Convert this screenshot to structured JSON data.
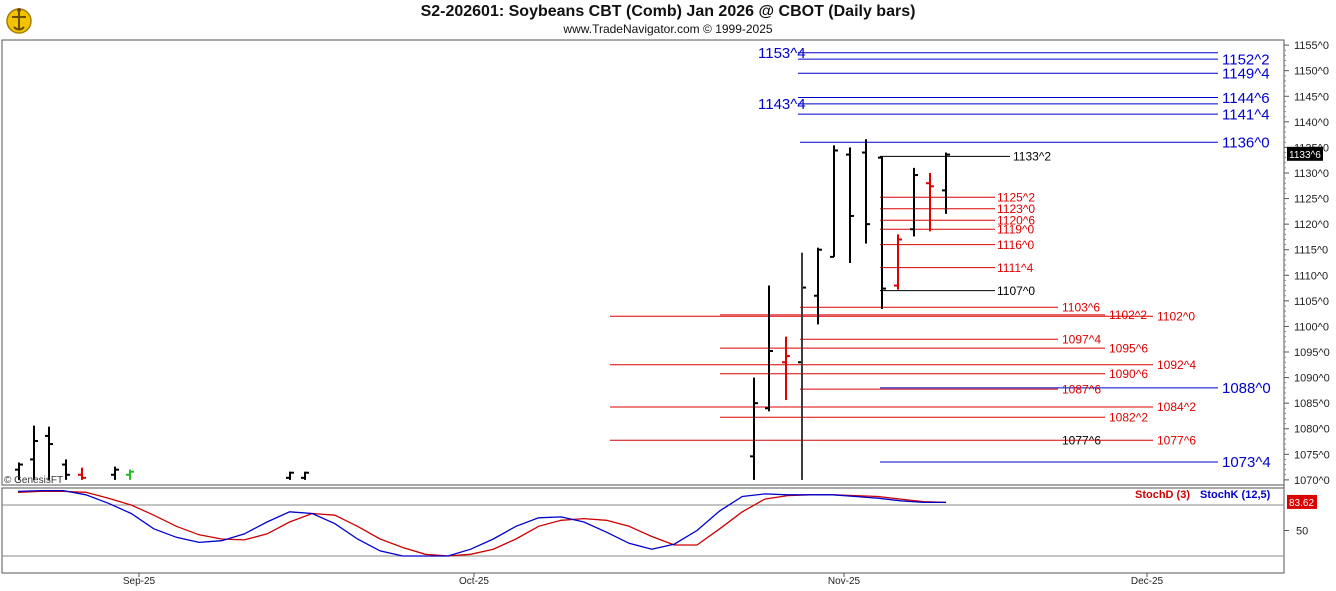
{
  "header": {
    "title": "S2-202601:  Soybeans CBT (Comb) Jan 2026 @ CBOT  (Daily bars)",
    "subtitle": "www.TradeNavigator.com © 1999-2025"
  },
  "watermark": "© GenesisFT",
  "price_tag": "1133^6",
  "stoch_tag": "83.62",
  "chart_data": [
    {
      "type": "bar",
      "title": "S2-202601:  Soybeans CBT (Comb) Jan 2026 @ CBOT  (Daily bars)",
      "x_tick_labels": [
        "Sep-25",
        "Oct-25",
        "Nov-25",
        "Dec-25"
      ],
      "y_tick_labels": [
        "1155^0",
        "1150^0",
        "1145^0",
        "1140^0",
        "1135^0",
        "1130^0",
        "1125^0",
        "1120^0",
        "1115^0",
        "1110^0",
        "1105^0",
        "1100^0",
        "1095^0",
        "1090^0",
        "1085^0",
        "1080^0",
        "1075^0",
        "1070^0"
      ],
      "ylim": [
        1069,
        1156
      ],
      "grid": false,
      "bars": [
        {
          "high": 1073.4,
          "low": 1070.0,
          "open": 1072.0,
          "close": 1073.0,
          "color": "black"
        },
        {
          "high": 1080.6,
          "low": 1070.0,
          "open": 1074.0,
          "close": 1077.6,
          "color": "black"
        },
        {
          "high": 1080.4,
          "low": 1070.0,
          "open": 1078.6,
          "close": 1077.0,
          "color": "black"
        },
        {
          "high": 1074.0,
          "low": 1070.0,
          "open": 1073.0,
          "close": 1071.0,
          "color": "black"
        },
        {
          "high": 1072.4,
          "low": 1070.0,
          "open": 1071.0,
          "close": 1070.4,
          "color": "red"
        },
        {
          "high": 1072.6,
          "low": 1070.0,
          "open": 1071.0,
          "close": 1072.0,
          "color": "black"
        },
        {
          "high": 1072.0,
          "low": 1070.0,
          "open": 1071.0,
          "close": 1071.6,
          "color": "green"
        },
        {
          "high": 1071.6,
          "low": 1070.0,
          "open": 1070.4,
          "close": 1071.4,
          "color": "black"
        },
        {
          "high": 1071.6,
          "low": 1070.0,
          "open": 1070.4,
          "close": 1071.4,
          "color": "black"
        },
        {
          "high": 1090.0,
          "low": 1070.0,
          "open": 1074.6,
          "close": 1085.0,
          "color": "black"
        },
        {
          "high": 1108.0,
          "low": 1083.4,
          "open": 1084.0,
          "close": 1095.2,
          "color": "black"
        },
        {
          "high": 1098.0,
          "low": 1085.6,
          "open": 1093.0,
          "close": 1094.2,
          "color": "red"
        },
        {
          "high": 1114.4,
          "low": 1070.0,
          "open": 1093.0,
          "close": 1107.6,
          "color": "black"
        },
        {
          "high": 1115.4,
          "low": 1100.4,
          "open": 1106.0,
          "close": 1115.0,
          "color": "black"
        },
        {
          "high": 1135.4,
          "low": 1113.6,
          "open": 1113.6,
          "close": 1134.4,
          "color": "black"
        },
        {
          "high": 1135.0,
          "low": 1112.4,
          "open": 1133.6,
          "close": 1121.6,
          "color": "black"
        },
        {
          "high": 1136.6,
          "low": 1116.2,
          "open": 1134.0,
          "close": 1120.0,
          "color": "black"
        },
        {
          "high": 1133.2,
          "low": 1103.4,
          "open": 1133.0,
          "close": 1107.4,
          "color": "black"
        },
        {
          "high": 1118.0,
          "low": 1107.2,
          "open": 1108.0,
          "close": 1117.0,
          "color": "red"
        },
        {
          "high": 1131.0,
          "low": 1117.6,
          "open": 1119.0,
          "close": 1129.6,
          "color": "black"
        },
        {
          "high": 1130.0,
          "low": 1118.6,
          "open": 1128.0,
          "close": 1127.4,
          "color": "red"
        },
        {
          "high": 1134.0,
          "low": 1122.0,
          "open": 1126.6,
          "close": 1133.6,
          "color": "black"
        }
      ],
      "levels": [
        {
          "label": "1153^4",
          "value": 1153.5,
          "color": "blue",
          "side": "left"
        },
        {
          "label": "1152^2",
          "value": 1152.25,
          "color": "blue",
          "side": "right"
        },
        {
          "label": "1149^4",
          "value": 1149.5,
          "color": "blue",
          "side": "right"
        },
        {
          "label": "1144^6",
          "value": 1144.75,
          "color": "blue",
          "side": "right"
        },
        {
          "label": "1143^4",
          "value": 1143.5,
          "color": "blue",
          "side": "left"
        },
        {
          "label": "1141^4",
          "value": 1141.5,
          "color": "blue",
          "side": "right"
        },
        {
          "label": "1136^0",
          "value": 1136.0,
          "color": "blue",
          "side": "right"
        },
        {
          "label": "1133^2",
          "value": 1133.25,
          "color": "black",
          "side": "inline"
        },
        {
          "label": "1125^2",
          "value": 1125.25,
          "color": "red",
          "side": "inline"
        },
        {
          "label": "1123^0",
          "value": 1123.0,
          "color": "red",
          "side": "inline"
        },
        {
          "label": "1120^6",
          "value": 1120.75,
          "color": "red",
          "side": "inline"
        },
        {
          "label": "1119^0",
          "value": 1119.0,
          "color": "red",
          "side": "inline"
        },
        {
          "label": "1116^0",
          "value": 1116.0,
          "color": "red",
          "side": "inline"
        },
        {
          "label": "1111^4",
          "value": 1111.5,
          "color": "red",
          "side": "inline"
        },
        {
          "label": "1107^0",
          "value": 1107.0,
          "color": "black",
          "side": "inline"
        },
        {
          "label": "1103^6",
          "value": 1103.75,
          "color": "red",
          "side": "inline"
        },
        {
          "label": "1102^2",
          "value": 1102.25,
          "color": "red",
          "side": "inline"
        },
        {
          "label": "1102^0",
          "value": 1102.0,
          "color": "red",
          "side": "inline"
        },
        {
          "label": "1097^4",
          "value": 1097.5,
          "color": "red",
          "side": "inline"
        },
        {
          "label": "1095^6",
          "value": 1095.75,
          "color": "red",
          "side": "inline"
        },
        {
          "label": "1092^4",
          "value": 1092.5,
          "color": "red",
          "side": "inline"
        },
        {
          "label": "1090^6",
          "value": 1090.75,
          "color": "red",
          "side": "inline"
        },
        {
          "label": "1088^0",
          "value": 1088.0,
          "color": "blue",
          "side": "right"
        },
        {
          "label": "1087^6",
          "value": 1087.75,
          "color": "red",
          "side": "inline"
        },
        {
          "label": "1084^2",
          "value": 1084.25,
          "color": "red",
          "side": "inline"
        },
        {
          "label": "1082^2",
          "value": 1082.25,
          "color": "red",
          "side": "inline"
        },
        {
          "label": "1077^6",
          "value": 1077.75,
          "color": "black",
          "side": "inline"
        },
        {
          "label": "1077^6",
          "value": 1077.75,
          "color": "red",
          "side": "inline"
        },
        {
          "label": "1073^4",
          "value": 1073.5,
          "color": "blue",
          "side": "right"
        }
      ]
    },
    {
      "type": "line",
      "ylim": [
        0,
        100
      ],
      "y_tick_labels": [
        "50"
      ],
      "reference_lines": [
        80,
        20
      ],
      "series": [
        {
          "name": "StochD (3)",
          "color": "#cc0000",
          "values": [
            95,
            96,
            96,
            95,
            88,
            80,
            68,
            55,
            45,
            40,
            39,
            46,
            60,
            70,
            68,
            55,
            40,
            30,
            22,
            20,
            22,
            28,
            40,
            55,
            62,
            64,
            62,
            55,
            43,
            33,
            33,
            52,
            72,
            87,
            91,
            92,
            92,
            91,
            90,
            87,
            84,
            83
          ]
        },
        {
          "name": "StochK (12,5)",
          "color": "#0000cc",
          "values": [
            96,
            97,
            97,
            92,
            82,
            70,
            52,
            42,
            36,
            38,
            46,
            60,
            72,
            70,
            58,
            40,
            26,
            20,
            20,
            20,
            28,
            40,
            55,
            65,
            66,
            60,
            48,
            35,
            28,
            34,
            50,
            73,
            90,
            93,
            92,
            92,
            92,
            90,
            88,
            85,
            83,
            83
          ]
        }
      ]
    }
  ]
}
